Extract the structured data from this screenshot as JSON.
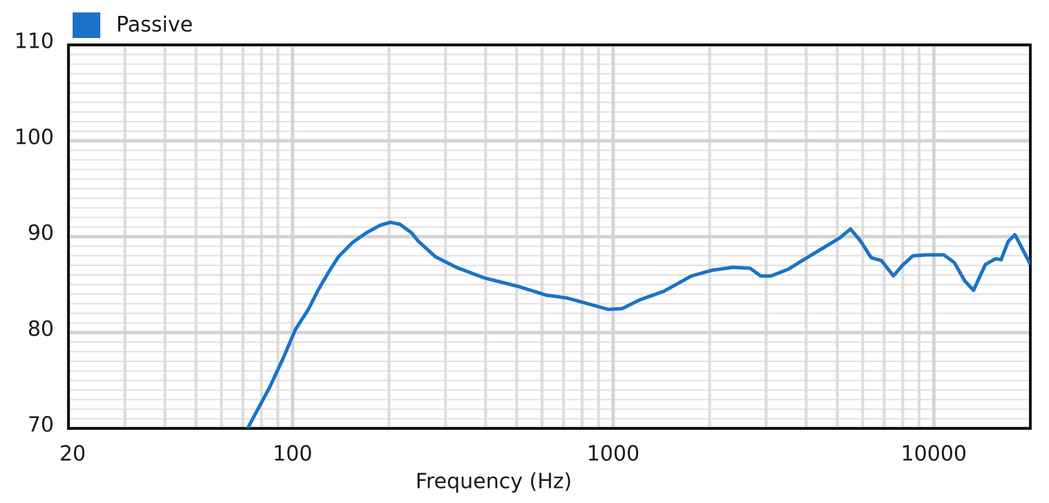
{
  "chart_data": {
    "type": "line",
    "x_label": "Frequency (Hz)",
    "x_scale": "log",
    "xlim": [
      20,
      20000
    ],
    "xticks": [
      20,
      100,
      1000,
      10000
    ],
    "ylim": [
      70,
      110
    ],
    "yticks": [
      70,
      80,
      90,
      100,
      110
    ],
    "grid": true,
    "minor_grid": true,
    "legend": "top-left",
    "x": [
      72.4,
      76.8,
      84.9,
      93.7,
      102,
      112,
      120,
      129,
      139,
      154,
      170,
      188,
      202,
      216,
      235,
      247,
      279,
      324,
      396,
      507,
      618,
      718,
      834,
      966,
      1067,
      1208,
      1439,
      1754,
      2036,
      2361,
      2674,
      2884,
      3105,
      3516,
      3882,
      4507,
      5106,
      5496,
      5920,
      6380,
      6870,
      7480,
      7980,
      8600,
      9490,
      10740,
      11590,
      12480,
      13300,
      14490,
      15600,
      16220,
      17060,
      17910,
      18840,
      20000
    ],
    "series": [
      {
        "name": "Passive",
        "color": "#1a73c9",
        "values": [
          70.0,
          71.6,
          74.3,
          77.4,
          80.3,
          82.4,
          84.4,
          86.2,
          87.9,
          89.4,
          90.4,
          91.2,
          91.5,
          91.3,
          90.4,
          89.5,
          87.9,
          86.8,
          85.7,
          84.8,
          83.9,
          83.6,
          83.0,
          82.4,
          82.5,
          83.4,
          84.3,
          85.9,
          86.5,
          86.8,
          86.7,
          85.9,
          85.9,
          86.6,
          87.5,
          88.8,
          89.9,
          90.8,
          89.5,
          87.8,
          87.5,
          85.9,
          87.0,
          88.0,
          88.1,
          88.1,
          87.3,
          85.4,
          84.4,
          87.1,
          87.7,
          87.6,
          89.5,
          90.2,
          88.8,
          87.1
        ]
      }
    ]
  }
}
